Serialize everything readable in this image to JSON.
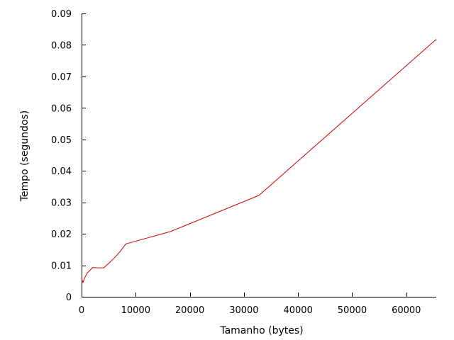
{
  "chart_data": {
    "type": "line",
    "title": "",
    "xlabel": "Tamanho (bytes)",
    "ylabel": "Tempo (segundos)",
    "xlim": [
      0,
      65536
    ],
    "ylim": [
      0,
      0.09
    ],
    "xticks": [
      0,
      10000,
      20000,
      30000,
      40000,
      50000,
      60000
    ],
    "xtick_labels": [
      "0",
      "10000",
      "20000",
      "30000",
      "40000",
      "50000",
      "60000"
    ],
    "yticks": [
      0,
      0.01,
      0.02,
      0.03,
      0.04,
      0.05,
      0.06,
      0.07,
      0.08,
      0.09
    ],
    "ytick_labels": [
      "0",
      "0.01",
      "0.02",
      "0.03",
      "0.04",
      "0.05",
      "0.06",
      "0.07",
      "0.08",
      "0.09"
    ],
    "grid": false,
    "legend": "none",
    "series": [
      {
        "color": "#cc0000",
        "x": [
          0,
          256,
          512,
          1024,
          2048,
          3072,
          4096,
          5120,
          6144,
          7168,
          8192,
          16384,
          32768,
          65536
        ],
        "y": [
          0.006,
          0.0045,
          0.0058,
          0.0075,
          0.0093,
          0.0092,
          0.0092,
          0.0108,
          0.0125,
          0.0145,
          0.0168,
          0.0207,
          0.0322,
          0.0818
        ]
      }
    ]
  }
}
